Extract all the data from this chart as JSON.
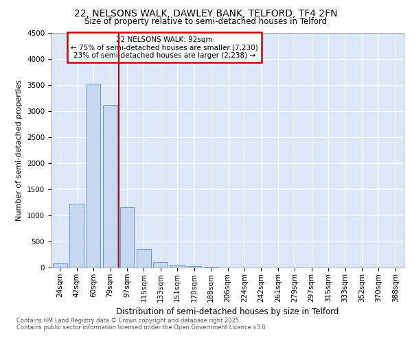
{
  "title_line1": "22, NELSONS WALK, DAWLEY BANK, TELFORD, TF4 2FN",
  "title_line2": "Size of property relative to semi-detached houses in Telford",
  "xlabel": "Distribution of semi-detached houses by size in Telford",
  "ylabel": "Number of semi-detached properties",
  "bar_labels": [
    "24sqm",
    "42sqm",
    "60sqm",
    "79sqm",
    "97sqm",
    "115sqm",
    "133sqm",
    "151sqm",
    "170sqm",
    "188sqm",
    "206sqm",
    "224sqm",
    "242sqm",
    "261sqm",
    "279sqm",
    "297sqm",
    "315sqm",
    "333sqm",
    "352sqm",
    "370sqm",
    "388sqm"
  ],
  "bar_values": [
    80,
    1220,
    3520,
    3110,
    1150,
    350,
    100,
    55,
    20,
    8,
    3,
    1,
    0,
    0,
    0,
    0,
    0,
    0,
    0,
    0,
    0
  ],
  "bar_color": "#c5d8f0",
  "bar_edge_color": "#6699cc",
  "vline_color": "#cc0000",
  "vline_x_index": 4,
  "annotation_title": "22 NELSONS WALK: 92sqm",
  "annotation_line1": "← 75% of semi-detached houses are smaller (7,230)",
  "annotation_line2": "23% of semi-detached houses are larger (2,238) →",
  "annotation_box_color": "#cc0000",
  "ylim": [
    0,
    4500
  ],
  "footer_line1": "Contains HM Land Registry data © Crown copyright and database right 2025.",
  "footer_line2": "Contains public sector information licensed under the Open Government Licence v3.0.",
  "plot_bg_color": "#dce8f8"
}
